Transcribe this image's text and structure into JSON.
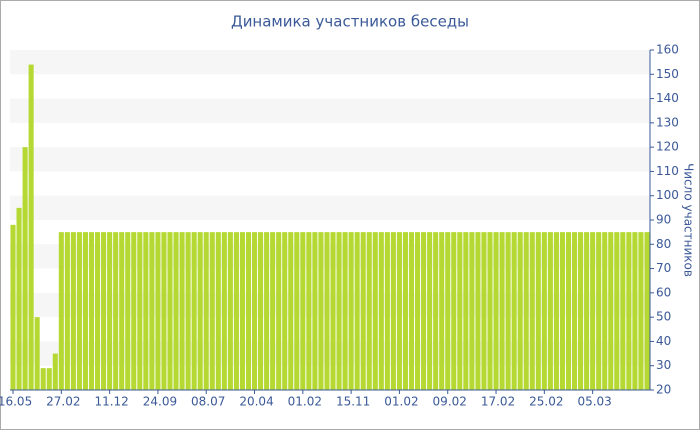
{
  "chart_data": {
    "type": "bar",
    "title": "Динамика участников беседы",
    "y_label": "Число участников",
    "categories": [
      "16.05",
      null,
      null,
      null,
      null,
      null,
      null,
      null,
      "27.02",
      null,
      null,
      null,
      null,
      null,
      null,
      null,
      "11.12",
      null,
      null,
      null,
      null,
      null,
      null,
      null,
      "24.09",
      null,
      null,
      null,
      null,
      null,
      null,
      null,
      "08.07",
      null,
      null,
      null,
      null,
      null,
      null,
      null,
      "20.04",
      null,
      null,
      null,
      null,
      null,
      null,
      null,
      "01.02",
      null,
      null,
      null,
      null,
      null,
      null,
      null,
      "15.11",
      null,
      null,
      null,
      null,
      null,
      null,
      null,
      "01.02",
      null,
      null,
      null,
      null,
      null,
      null,
      null,
      "09.02",
      null,
      null,
      null,
      null,
      null,
      null,
      null,
      "17.02",
      null,
      null,
      null,
      null,
      null,
      null,
      null,
      "25.02",
      null,
      null,
      null,
      null,
      null,
      null,
      null,
      "05.03",
      null,
      null,
      null,
      null,
      null,
      null,
      null,
      null,
      null
    ],
    "values": [
      88,
      95,
      120,
      154,
      50,
      29,
      29,
      35,
      85,
      85,
      85,
      85,
      85,
      85,
      85,
      85,
      85,
      85,
      85,
      85,
      85,
      85,
      85,
      85,
      85,
      85,
      85,
      85,
      85,
      85,
      85,
      85,
      85,
      85,
      85,
      85,
      85,
      85,
      85,
      85,
      85,
      85,
      85,
      85,
      85,
      85,
      85,
      85,
      85,
      85,
      85,
      85,
      85,
      85,
      85,
      85,
      85,
      85,
      85,
      85,
      85,
      85,
      85,
      85,
      85,
      85,
      85,
      85,
      85,
      85,
      85,
      85,
      85,
      85,
      85,
      85,
      85,
      85,
      85,
      85,
      85,
      85,
      85,
      85,
      85,
      85,
      85,
      85,
      85,
      85,
      85,
      85,
      85,
      85,
      85,
      85,
      85,
      85,
      85,
      85,
      85,
      85,
      85,
      85,
      85,
      85
    ],
    "color": "#b5d932",
    "ylim": [
      20,
      160
    ],
    "yticks": [
      20,
      30,
      40,
      50,
      60,
      70,
      80,
      90,
      100,
      110,
      120,
      130,
      140,
      150,
      160
    ],
    "grid": "bands",
    "y_axis_side": "right"
  }
}
